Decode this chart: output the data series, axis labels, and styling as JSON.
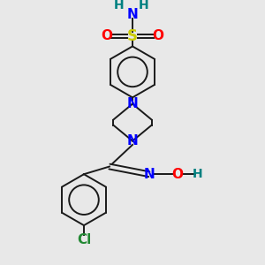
{
  "bg_color": "#e8e8e8",
  "bond_color": "#1a1a1a",
  "N_color": "#0000ff",
  "O_color": "#ff0000",
  "S_color": "#cccc00",
  "Cl_color": "#228833",
  "H_color": "#008080",
  "figsize": [
    3.0,
    3.0
  ],
  "dpi": 100,
  "xlim": [
    0,
    10
  ],
  "ylim": [
    0,
    10
  ]
}
